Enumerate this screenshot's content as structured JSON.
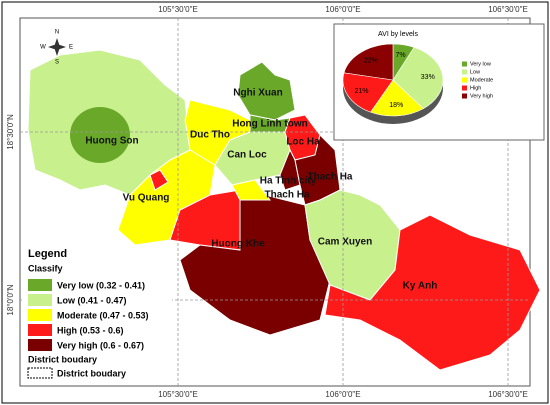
{
  "graticule": {
    "top": [
      "105°30'0\"E",
      "106°0'0\"E",
      "106°30'0\"E"
    ],
    "bottom": [
      "105°30'0\"E",
      "106°0'0\"E",
      "106°30'0\"E"
    ],
    "left": [
      "18°30'0\"N",
      "18°0'0\"N"
    ]
  },
  "north_arrow": {
    "n": "N",
    "s": "S",
    "e": "E",
    "w": "W"
  },
  "districts": [
    "Huong Son",
    "Vu Quang",
    "Huong Khe",
    "Nghi Xuan",
    "Hong Linh town",
    "Duc Tho",
    "Can Loc",
    "Loc Ha",
    "Ha Tinh city",
    "Thach Ha",
    "Thach Ha",
    "Cam Xuyen",
    "Ky Anh"
  ],
  "legend": {
    "title": "Legend",
    "classify": "Classify",
    "classes": [
      "Very low (0.32 - 0.41)",
      "Low (0.41 - 0.47)",
      "Moderate (0.47 - 0.53)",
      "High (0.53 - 0.6)",
      "Very high (0.6 - 0.67)"
    ],
    "boundary_title": "District boudary",
    "boundary": "District boudary"
  },
  "chart_data": {
    "type": "pie",
    "title": "AVI  by levels",
    "categories": [
      "Very low",
      "Low",
      "Moderate",
      "High",
      "Very high"
    ],
    "values": [
      7,
      33,
      18,
      21,
      22
    ],
    "value_labels": [
      "7%",
      "33%",
      "18%",
      "21%",
      "22%"
    ],
    "colors": [
      "#6aa82a",
      "#c8f08c",
      "#ffff00",
      "#ff1a1a",
      "#8b0000"
    ]
  }
}
